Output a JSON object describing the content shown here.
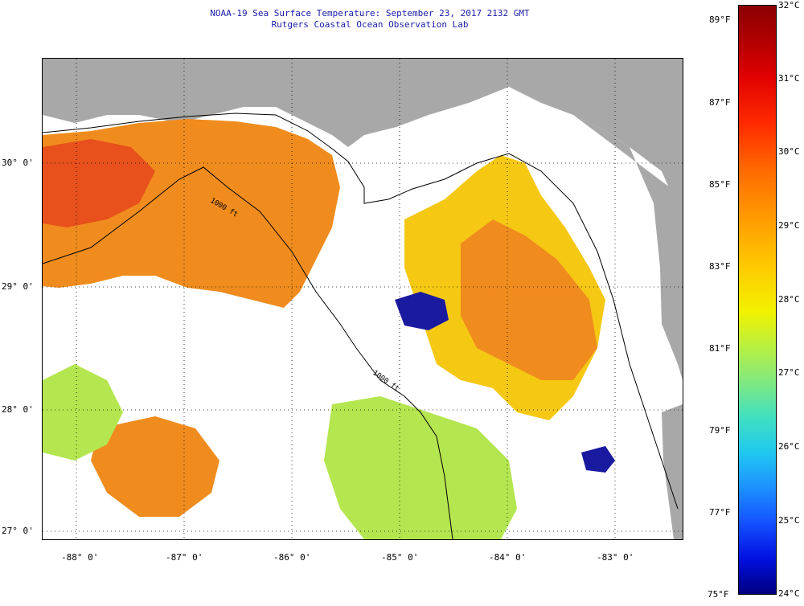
{
  "title": {
    "line1": "NOAA-19 Sea Surface Temperature:  September 23, 2017 2132 GMT",
    "line2": "Rutgers Coastal Ocean Observation Lab"
  },
  "map": {
    "lat_labels": [
      "30° 0'",
      "29° 0'",
      "28° 0'",
      "27° 0'"
    ],
    "lon_labels": [
      "-88° 0'",
      "-87° 0'",
      "-86° 0'",
      "-85° 0'",
      "-84° 0'",
      "-83° 0'"
    ],
    "contour_labels": [
      "1000 ft",
      "1000 ft"
    ],
    "colors": {
      "land": "#a8a8a8",
      "cloud": "#ffffff",
      "warm": "#f08c1e",
      "hot": "#e8501c",
      "mid": "#f5c814",
      "cool": "#b4e650",
      "cold": "#1a1aa0"
    }
  },
  "colorbar": {
    "fahrenheit_labels": [
      "89°F",
      "87°F",
      "85°F",
      "83°F",
      "81°F",
      "79°F",
      "77°F",
      "75°F"
    ],
    "celsius_labels": [
      "32°C",
      "31°C",
      "30°C",
      "29°C",
      "28°C",
      "27°C",
      "26°C",
      "25°C",
      "24°C"
    ]
  }
}
